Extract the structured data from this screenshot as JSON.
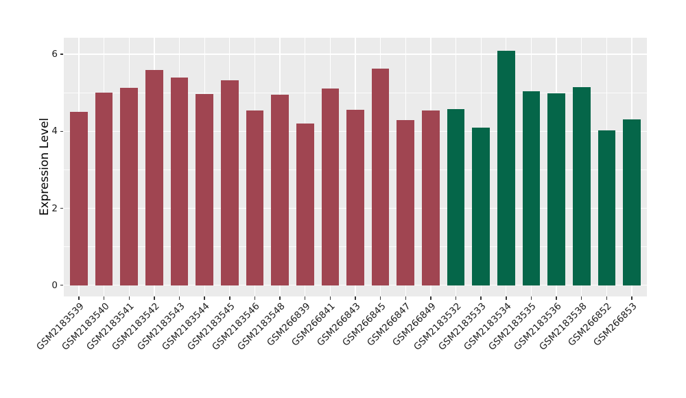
{
  "colors": {
    "group1_bar": "#a04551",
    "group2_bar": "#056649",
    "panel_background": "#ebebeb",
    "grid": "#ffffff",
    "tick_text": "#1a1a1a",
    "tick_mark": "#333333"
  },
  "chart_data": {
    "type": "bar",
    "title": "",
    "xlabel": "",
    "ylabel": "Expression Level",
    "categories": [
      "GSM2183539",
      "GSM2183540",
      "GSM2183541",
      "GSM2183542",
      "GSM2183543",
      "GSM2183544",
      "GSM2183545",
      "GSM2183546",
      "GSM2183548",
      "GSM266839",
      "GSM266841",
      "GSM266843",
      "GSM266845",
      "GSM266847",
      "GSM266849",
      "GSM2183532",
      "GSM2183533",
      "GSM2183534",
      "GSM2183535",
      "GSM2183536",
      "GSM2183538",
      "GSM266852",
      "GSM266853"
    ],
    "values": [
      4.5,
      5.01,
      5.13,
      5.6,
      5.4,
      4.96,
      5.33,
      4.54,
      4.95,
      4.21,
      5.11,
      4.56,
      5.62,
      4.29,
      4.54,
      4.57,
      4.1,
      6.09,
      5.04,
      4.98,
      5.15,
      4.02,
      4.31
    ],
    "bar_colors": [
      "#a04551",
      "#a04551",
      "#a04551",
      "#a04551",
      "#a04551",
      "#a04551",
      "#a04551",
      "#a04551",
      "#a04551",
      "#a04551",
      "#a04551",
      "#a04551",
      "#a04551",
      "#a04551",
      "#a04551",
      "#056649",
      "#056649",
      "#056649",
      "#056649",
      "#056649",
      "#056649",
      "#056649",
      "#056649"
    ],
    "yticks": [
      0,
      2,
      4,
      6
    ],
    "yticks_minor": [
      1,
      3,
      5
    ],
    "ylim": [
      -0.29,
      6.43
    ],
    "grid": true,
    "legend": false,
    "bar_width_ratio": 0.7
  }
}
